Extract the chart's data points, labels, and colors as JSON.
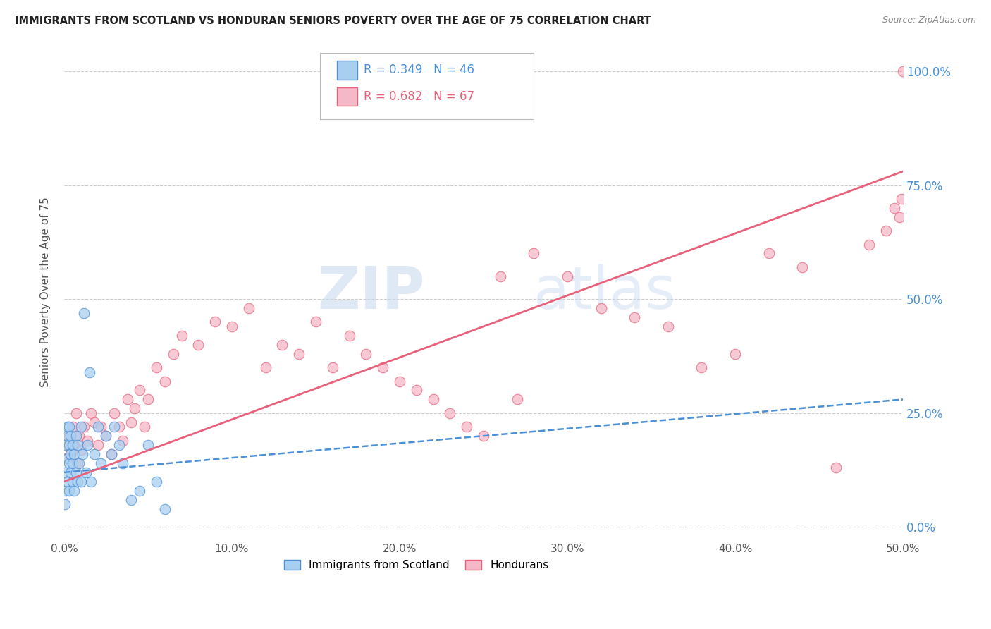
{
  "title": "IMMIGRANTS FROM SCOTLAND VS HONDURAN SENIORS POVERTY OVER THE AGE OF 75 CORRELATION CHART",
  "source": "Source: ZipAtlas.com",
  "ylabel": "Seniors Poverty Over the Age of 75",
  "legend_label1": "Immigrants from Scotland",
  "legend_label2": "Hondurans",
  "R1": 0.349,
  "N1": 46,
  "R2": 0.682,
  "N2": 67,
  "color1": "#a8cff0",
  "color2": "#f5b8c8",
  "line1_color": "#4a90d9",
  "line2_color": "#e8607a",
  "xlim": [
    0.0,
    0.5
  ],
  "ylim": [
    -0.02,
    1.05
  ],
  "yticks": [
    0.0,
    0.25,
    0.5,
    0.75,
    1.0
  ],
  "xticks": [
    0.0,
    0.1,
    0.2,
    0.3,
    0.4,
    0.5
  ],
  "watermark_zip": "ZIP",
  "watermark_atlas": "atlas",
  "blue_dots_x": [
    0.0005,
    0.001,
    0.001,
    0.001,
    0.002,
    0.002,
    0.002,
    0.002,
    0.003,
    0.003,
    0.003,
    0.003,
    0.004,
    0.004,
    0.004,
    0.005,
    0.005,
    0.005,
    0.006,
    0.006,
    0.007,
    0.007,
    0.008,
    0.008,
    0.009,
    0.01,
    0.01,
    0.011,
    0.012,
    0.013,
    0.014,
    0.015,
    0.016,
    0.018,
    0.02,
    0.022,
    0.025,
    0.028,
    0.03,
    0.033,
    0.035,
    0.04,
    0.045,
    0.05,
    0.055,
    0.06
  ],
  "blue_dots_y": [
    0.05,
    0.08,
    0.12,
    0.18,
    0.1,
    0.15,
    0.2,
    0.22,
    0.08,
    0.14,
    0.18,
    0.22,
    0.12,
    0.16,
    0.2,
    0.1,
    0.14,
    0.18,
    0.08,
    0.16,
    0.12,
    0.2,
    0.1,
    0.18,
    0.14,
    0.22,
    0.1,
    0.16,
    0.47,
    0.12,
    0.18,
    0.34,
    0.1,
    0.16,
    0.22,
    0.14,
    0.2,
    0.16,
    0.22,
    0.18,
    0.14,
    0.06,
    0.08,
    0.18,
    0.1,
    0.04
  ],
  "pink_dots_x": [
    0.001,
    0.002,
    0.003,
    0.004,
    0.005,
    0.006,
    0.007,
    0.008,
    0.009,
    0.01,
    0.012,
    0.014,
    0.016,
    0.018,
    0.02,
    0.022,
    0.025,
    0.028,
    0.03,
    0.033,
    0.035,
    0.038,
    0.04,
    0.042,
    0.045,
    0.048,
    0.05,
    0.055,
    0.06,
    0.065,
    0.07,
    0.08,
    0.09,
    0.1,
    0.11,
    0.12,
    0.13,
    0.14,
    0.15,
    0.16,
    0.17,
    0.18,
    0.19,
    0.2,
    0.21,
    0.22,
    0.23,
    0.24,
    0.25,
    0.26,
    0.27,
    0.28,
    0.3,
    0.32,
    0.34,
    0.36,
    0.38,
    0.4,
    0.42,
    0.44,
    0.46,
    0.48,
    0.49,
    0.495,
    0.498,
    0.499,
    0.5
  ],
  "pink_dots_y": [
    0.15,
    0.18,
    0.2,
    0.16,
    0.22,
    0.18,
    0.25,
    0.14,
    0.2,
    0.17,
    0.22,
    0.19,
    0.25,
    0.23,
    0.18,
    0.22,
    0.2,
    0.16,
    0.25,
    0.22,
    0.19,
    0.28,
    0.23,
    0.26,
    0.3,
    0.22,
    0.28,
    0.35,
    0.32,
    0.38,
    0.42,
    0.4,
    0.45,
    0.44,
    0.48,
    0.35,
    0.4,
    0.38,
    0.45,
    0.35,
    0.42,
    0.38,
    0.35,
    0.32,
    0.3,
    0.28,
    0.25,
    0.22,
    0.2,
    0.55,
    0.28,
    0.6,
    0.55,
    0.48,
    0.46,
    0.44,
    0.35,
    0.38,
    0.6,
    0.57,
    0.13,
    0.62,
    0.65,
    0.7,
    0.68,
    0.72,
    1.0
  ],
  "blue_line_x": [
    0.0,
    0.5
  ],
  "blue_line_y": [
    0.12,
    0.28
  ],
  "pink_line_x": [
    0.0,
    0.5
  ],
  "pink_line_y": [
    0.1,
    0.78
  ]
}
